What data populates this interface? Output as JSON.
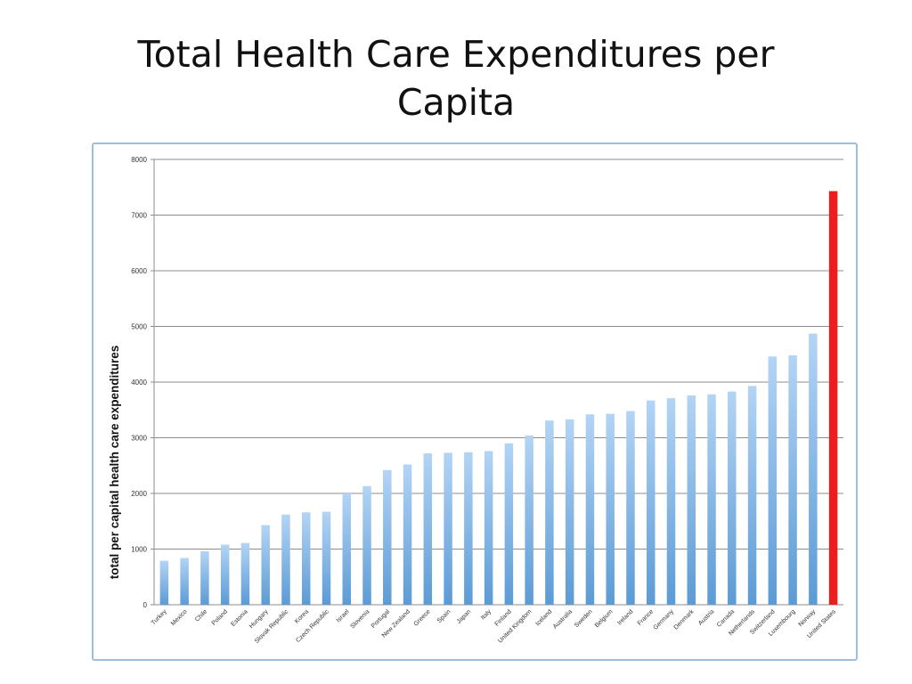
{
  "slide": {
    "title_line1": "Total Health Care Expenditures per",
    "title_line2": "Capita"
  },
  "chart_data": {
    "type": "bar",
    "ylabel": "total per capital health care expenditures",
    "xlabel": "",
    "ylim": [
      0,
      8000
    ],
    "yticks": [
      0,
      1000,
      2000,
      3000,
      4000,
      5000,
      6000,
      7000,
      8000
    ],
    "grid": true,
    "categories": [
      "Turkey",
      "Mexico",
      "Chile",
      "Poland",
      "Estonia",
      "Hungary",
      "Slovak Republic",
      "Korea",
      "Czech Republic",
      "Israel",
      "Slovenia",
      "Portugal",
      "New Zealand",
      "Greece",
      "Spain",
      "Japan",
      "Italy",
      "Finland",
      "United Kingdom",
      "Iceland",
      "Australia",
      "Sweden",
      "Belgium",
      "Ireland",
      "France",
      "Germany",
      "Denmark",
      "Austria",
      "Canada",
      "Netherlands",
      "Switzerland",
      "Luxembourg",
      "Norway",
      "United States"
    ],
    "values": [
      790,
      840,
      960,
      1080,
      1110,
      1430,
      1620,
      1660,
      1670,
      2000,
      2130,
      2420,
      2520,
      2720,
      2730,
      2740,
      2760,
      2900,
      3040,
      3310,
      3330,
      3420,
      3430,
      3480,
      3670,
      3710,
      3760,
      3780,
      3830,
      3930,
      4460,
      4480,
      4870,
      7430
    ],
    "colors": {
      "bar_top": "#b3d4f5",
      "bar_bottom": "#5b9bd5",
      "highlight": "#ee1c1c",
      "grid": "#8c8c8c"
    },
    "highlight_category": "United States"
  }
}
